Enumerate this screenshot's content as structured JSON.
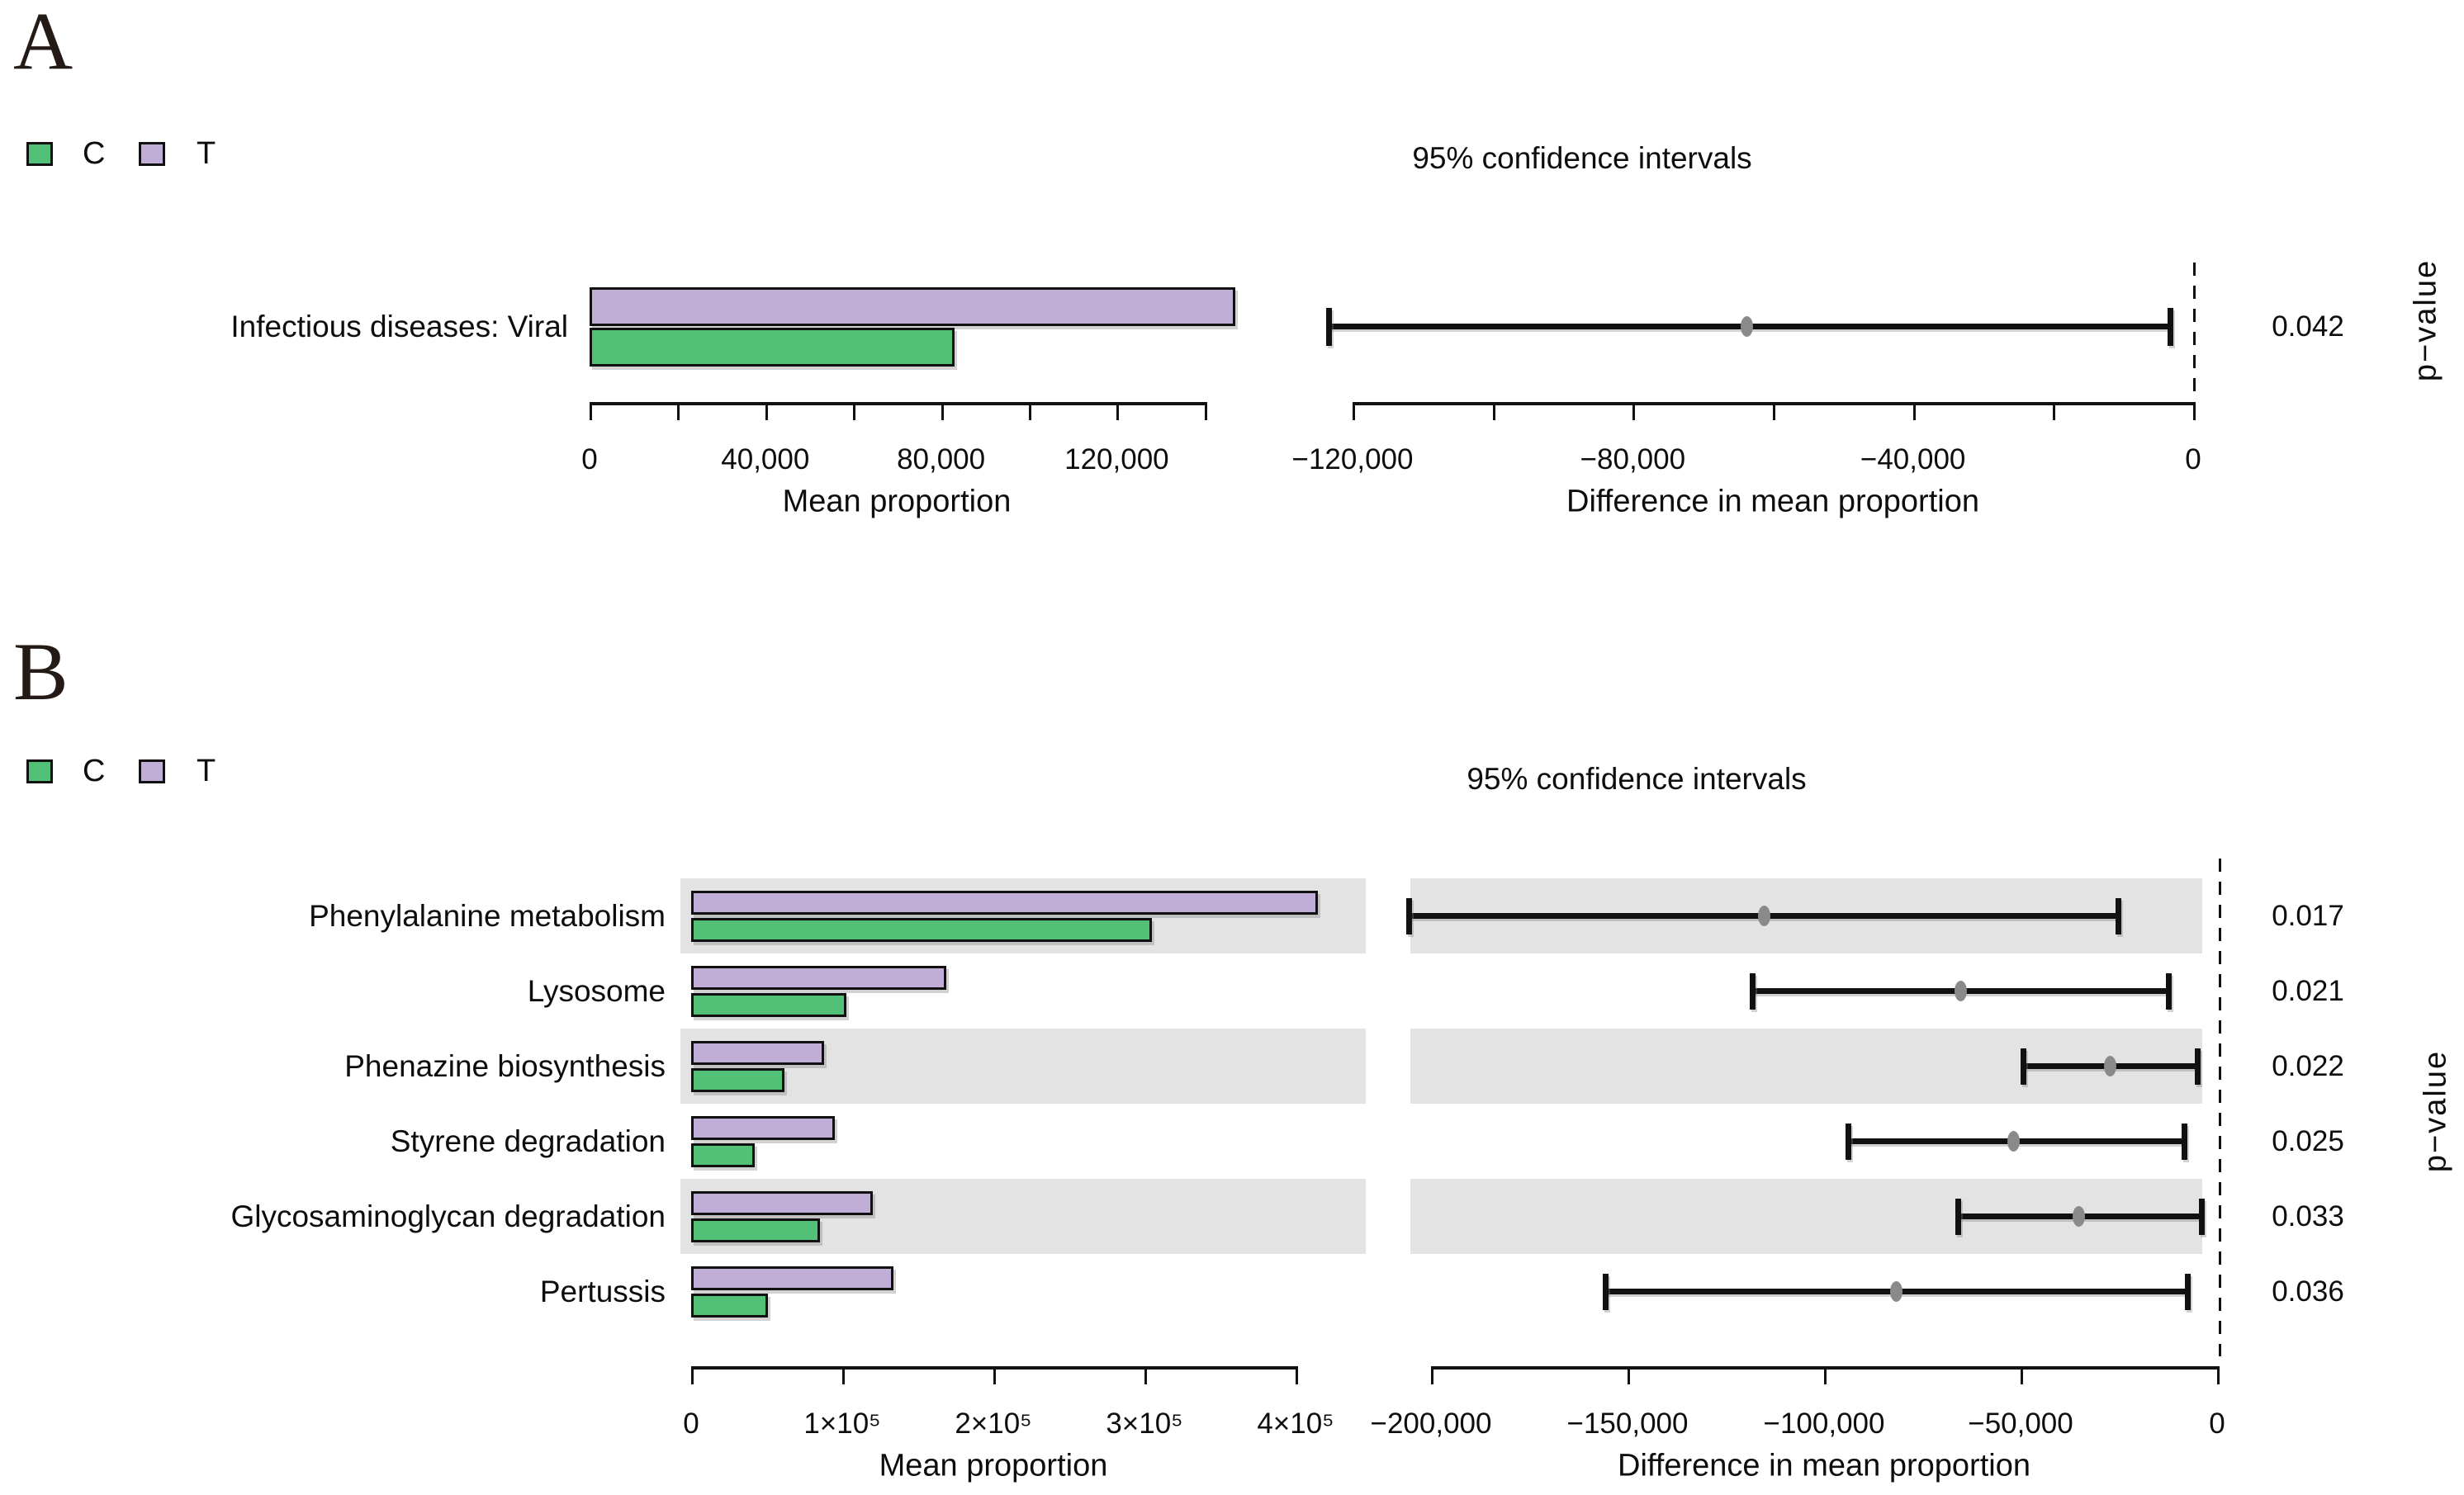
{
  "colors": {
    "group_C": "#52c077",
    "group_T": "#c0aed7",
    "row_stripe": "#e3e3e3",
    "ci_dot": "#8a8a8a",
    "axis": "#111111",
    "panel_letter": "#241a16"
  },
  "chart_data": [
    {
      "type": "bar",
      "panel_letter": "A",
      "ci_title": "95% confidence intervals",
      "pvalue_axis_label": "p−value",
      "legend": [
        {
          "label": "C",
          "color": "#52c077"
        },
        {
          "label": "T",
          "color": "#c0aed7"
        }
      ],
      "left_chart": {
        "xlabel": "Mean proportion",
        "xlim": [
          0,
          150000
        ],
        "grid": false,
        "ticks": [
          {
            "v": 0,
            "label": "0"
          },
          {
            "v": 20000,
            "label": ""
          },
          {
            "v": 40000,
            "label": "40,000"
          },
          {
            "v": 60000,
            "label": ""
          },
          {
            "v": 80000,
            "label": "80,000"
          },
          {
            "v": 100000,
            "label": ""
          },
          {
            "v": 120000,
            "label": "120,000"
          },
          {
            "v": 140000,
            "label": ""
          }
        ]
      },
      "right_chart": {
        "xlabel": "Difference in mean proportion",
        "xlim": [
          -126000,
          4000
        ],
        "zero_line": 0,
        "ticks": [
          {
            "v": -120000,
            "label": "−120,000"
          },
          {
            "v": -100000,
            "label": ""
          },
          {
            "v": -80000,
            "label": "−80,000"
          },
          {
            "v": -60000,
            "label": ""
          },
          {
            "v": -40000,
            "label": "−40,000"
          },
          {
            "v": -20000,
            "label": ""
          },
          {
            "v": 0,
            "label": "0"
          }
        ]
      },
      "rows": [
        {
          "label": "Infectious diseases: Viral",
          "mean_C": 83000,
          "mean_T": 147000,
          "ci": [
            -123400,
            -3300
          ],
          "diff_mean": -63700,
          "p_value": "0.042",
          "shaded": false
        }
      ]
    },
    {
      "type": "bar",
      "panel_letter": "B",
      "ci_title": "95% confidence intervals",
      "pvalue_axis_label": "p−value",
      "legend": [
        {
          "label": "C",
          "color": "#52c077"
        },
        {
          "label": "T",
          "color": "#c0aed7"
        }
      ],
      "left_chart": {
        "xlabel": "Mean proportion",
        "xlim": [
          0,
          445000
        ],
        "grid": false,
        "ticks": [
          {
            "v": 0,
            "label": "0"
          },
          {
            "v": 100000,
            "label": "1×10⁵"
          },
          {
            "v": 200000,
            "label": "2×10⁵"
          },
          {
            "v": 300000,
            "label": "3×10⁵"
          },
          {
            "v": 400000,
            "label": "4×10⁵"
          }
        ]
      },
      "right_chart": {
        "xlabel": "Difference in mean proportion",
        "xlim": [
          -205500,
          4000
        ],
        "zero_line": 0,
        "ticks": [
          {
            "v": -200000,
            "label": "−200,000"
          },
          {
            "v": -150000,
            "label": "−150,000"
          },
          {
            "v": -100000,
            "label": "−100,000"
          },
          {
            "v": -50000,
            "label": "−50,000"
          },
          {
            "v": 0,
            "label": "0"
          }
        ]
      },
      "rows": [
        {
          "label": "Phenylalanine metabolism",
          "mean_C": 305000,
          "mean_T": 415000,
          "ci": [
            -205500,
            -25200
          ],
          "diff_mean": -115300,
          "p_value": "0.017",
          "shaded": true
        },
        {
          "label": "Lysosome",
          "mean_C": 103000,
          "mean_T": 169000,
          "ci": [
            -118100,
            -12200
          ],
          "diff_mean": -65300,
          "p_value": "0.021",
          "shaded": false
        },
        {
          "label": "Phenazine biosynthesis",
          "mean_C": 62000,
          "mean_T": 88000,
          "ci": [
            -49200,
            -5000
          ],
          "diff_mean": -27300,
          "p_value": "0.022",
          "shaded": true
        },
        {
          "label": "Styrene degradation",
          "mean_C": 42000,
          "mean_T": 95000,
          "ci": [
            -93900,
            -8200
          ],
          "diff_mean": -51700,
          "p_value": "0.025",
          "shaded": false
        },
        {
          "label": "Glycosaminoglycan degradation",
          "mean_C": 85000,
          "mean_T": 120000,
          "ci": [
            -65800,
            -3800
          ],
          "diff_mean": -35100,
          "p_value": "0.033",
          "shaded": true
        },
        {
          "label": "Pertussis",
          "mean_C": 51000,
          "mean_T": 134000,
          "ci": [
            -155500,
            -7400
          ],
          "diff_mean": -81700,
          "p_value": "0.036",
          "shaded": false
        }
      ]
    }
  ]
}
